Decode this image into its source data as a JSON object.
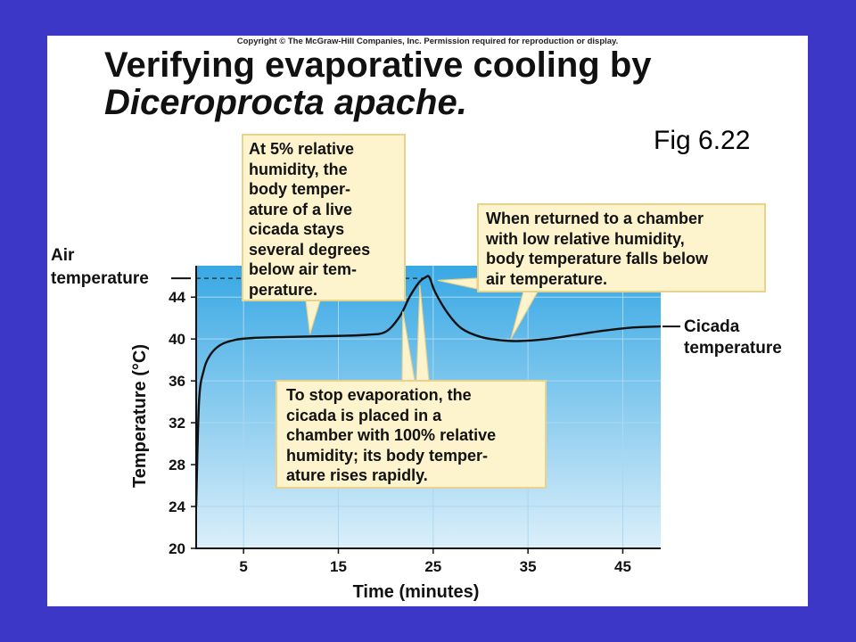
{
  "copyright": "Copyright © The McGraw-Hill Companies, Inc. Permission required for reproduction or display.",
  "title_line1": "Verifying evaporative cooling by",
  "title_line2": "Diceroprocta apache.",
  "figure_label": "Fig 6.22",
  "callouts": {
    "low_humidity": "At 5% relative\nhumidity, the\nbody temper-\nature of a live\ncicada stays\nseveral degrees\nbelow air tem-\nperature.",
    "return_low": "When returned to a chamber\nwith low relative humidity,\nbody temperature falls below\nair temperature.",
    "high_humidity": "To stop evaporation, the\ncicada is placed in a\nchamber with 100% relative\nhumidity; its body temper-\nature rises rapidly."
  },
  "colors": {
    "background": "#3d37c8",
    "panel_top": "#38a8e4",
    "panel_bottom": "#dbeffa",
    "callout_fill": "#fdf3cd",
    "callout_border": "#e8d38c"
  },
  "chart_data": {
    "type": "line",
    "xlabel": "Time (minutes)",
    "ylabel": "Temperature (°C)",
    "x_ticks": [
      5,
      15,
      25,
      35,
      45
    ],
    "y_ticks": [
      20,
      24,
      28,
      32,
      36,
      40,
      44
    ],
    "xlim": [
      0,
      49
    ],
    "ylim": [
      20,
      47
    ],
    "grid": true,
    "air_temperature": 45.8,
    "air_label": [
      "Air",
      "temperature"
    ],
    "series_label": [
      "Cicada",
      "temperature"
    ],
    "series": [
      {
        "name": "Cicada temperature",
        "x": [
          0,
          0.3,
          0.8,
          1.5,
          2.5,
          4,
          6,
          10,
          15,
          18,
          20,
          21.5,
          22.5,
          23.5,
          24.2,
          24.6,
          25.2,
          26.5,
          28,
          30,
          32,
          34,
          37,
          40,
          43,
          46,
          49
        ],
        "y": [
          24,
          34,
          37,
          38.5,
          39.4,
          39.9,
          40.1,
          40.2,
          40.3,
          40.4,
          40.7,
          42.2,
          44,
          45.4,
          45.9,
          45.9,
          44.5,
          42.5,
          41,
          40.2,
          39.9,
          39.8,
          40,
          40.4,
          40.8,
          41.1,
          41.2
        ]
      }
    ]
  }
}
